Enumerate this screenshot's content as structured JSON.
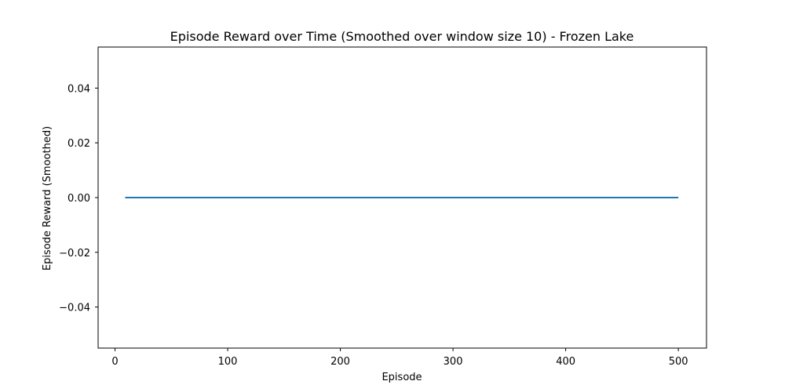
{
  "chart_data": {
    "type": "line",
    "title": "Episode Reward over Time (Smoothed over window size 10) - Frozen Lake",
    "xlabel": "Episode",
    "ylabel": "Episode Reward (Smoothed)",
    "xlim": [
      -15,
      525
    ],
    "ylim": [
      -0.055,
      0.055
    ],
    "xticks": [
      0,
      100,
      200,
      300,
      400,
      500
    ],
    "xtick_labels": [
      "0",
      "100",
      "200",
      "300",
      "400",
      "500"
    ],
    "yticks": [
      -0.04,
      -0.02,
      0.0,
      0.02,
      0.04
    ],
    "ytick_labels": [
      "−0.04",
      "−0.02",
      "0.00",
      "0.02",
      "0.04"
    ],
    "grid": false,
    "series": [
      {
        "color": "#1f77b4",
        "x": [
          9,
          500
        ],
        "y": [
          0.0,
          0.0
        ]
      }
    ]
  }
}
